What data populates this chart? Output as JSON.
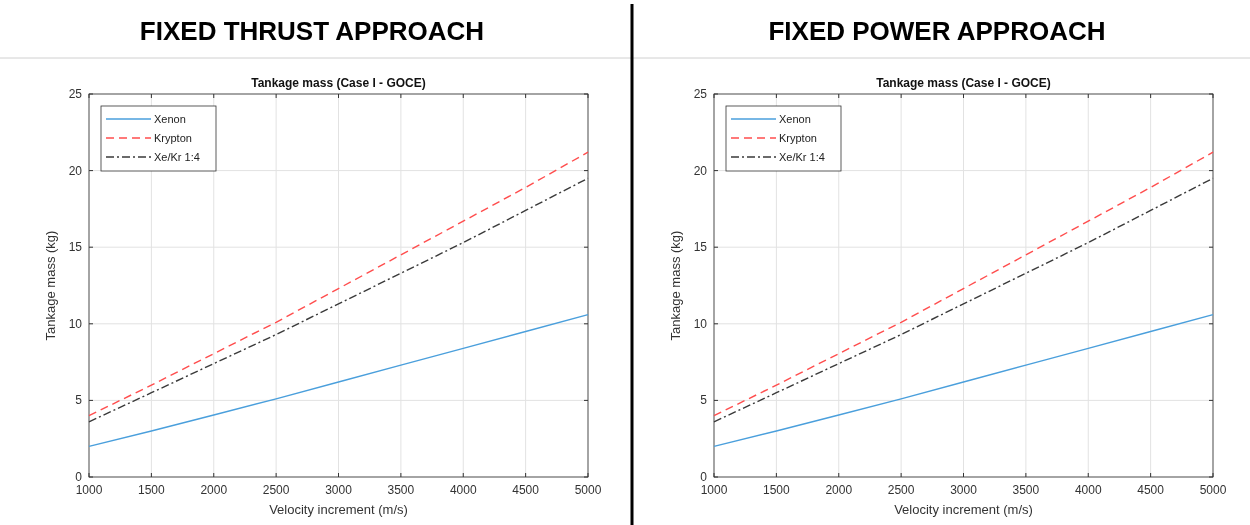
{
  "chart_data": [
    {
      "type": "line",
      "title": "FIXED THRUST APPROACH",
      "subtitle": "Tankage mass (Case I - GOCE)",
      "xlabel": "Velocity increment (m/s)",
      "ylabel": "Tankage mass (kg)",
      "x": [
        1000,
        1500,
        2000,
        2500,
        3000,
        3500,
        4000,
        4500,
        5000
      ],
      "xlim": [
        1000,
        5000
      ],
      "xticks": [
        1000,
        1500,
        2000,
        2500,
        3000,
        3500,
        4000,
        4500,
        5000
      ],
      "ylim": [
        0,
        25
      ],
      "yticks": [
        0,
        5,
        10,
        15,
        20,
        25
      ],
      "grid": true,
      "legend": "top left",
      "series": [
        {
          "name": "Xenon",
          "color": "#4a9fdc",
          "line_style": "solid",
          "values": [
            2.0,
            3.0,
            4.05,
            5.1,
            6.2,
            7.3,
            8.4,
            9.5,
            10.6
          ]
        },
        {
          "name": "Krypton",
          "color": "#ff4d4d",
          "line_style": "dashed",
          "values": [
            4.0,
            6.0,
            8.05,
            10.1,
            12.3,
            14.5,
            16.7,
            18.9,
            21.2
          ]
        },
        {
          "name": "Xe/Kr 1:4",
          "color": "#3a3a3a",
          "line_style": "dashdot",
          "values": [
            3.6,
            5.5,
            7.4,
            9.3,
            11.3,
            13.3,
            15.3,
            17.4,
            19.5
          ]
        }
      ]
    },
    {
      "type": "line",
      "title": "FIXED POWER APPROACH",
      "subtitle": "Tankage mass (Case I - GOCE)",
      "xlabel": "Velocity increment (m/s)",
      "ylabel": "Tankage mass (kg)",
      "x": [
        1000,
        1500,
        2000,
        2500,
        3000,
        3500,
        4000,
        4500,
        5000
      ],
      "xlim": [
        1000,
        5000
      ],
      "xticks": [
        1000,
        1500,
        2000,
        2500,
        3000,
        3500,
        4000,
        4500,
        5000
      ],
      "ylim": [
        0,
        25
      ],
      "yticks": [
        0,
        5,
        10,
        15,
        20,
        25
      ],
      "grid": true,
      "legend": "top left",
      "series": [
        {
          "name": "Xenon",
          "color": "#4a9fdc",
          "line_style": "solid",
          "values": [
            2.0,
            3.0,
            4.05,
            5.1,
            6.2,
            7.3,
            8.4,
            9.5,
            10.6
          ]
        },
        {
          "name": "Krypton",
          "color": "#ff4d4d",
          "line_style": "dashed",
          "values": [
            4.0,
            6.0,
            8.05,
            10.1,
            12.3,
            14.5,
            16.7,
            18.9,
            21.2
          ]
        },
        {
          "name": "Xe/Kr 1:4",
          "color": "#3a3a3a",
          "line_style": "dashdot",
          "values": [
            3.6,
            5.5,
            7.4,
            9.3,
            11.3,
            13.3,
            15.3,
            17.4,
            19.5
          ]
        }
      ]
    }
  ]
}
